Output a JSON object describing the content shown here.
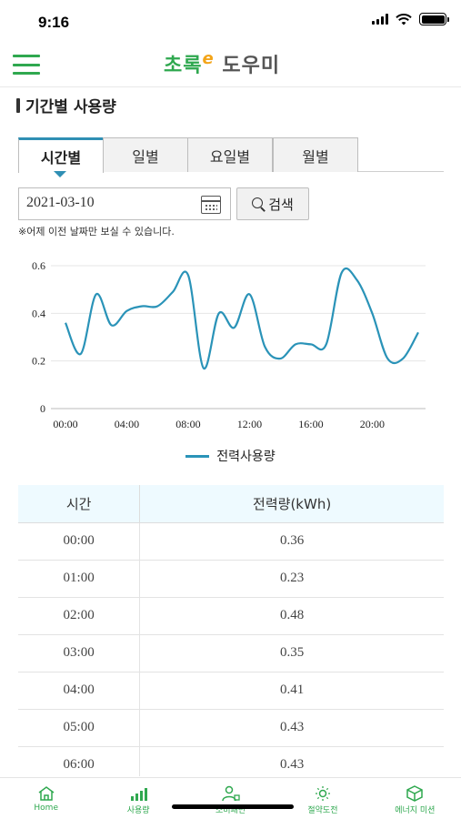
{
  "status_bar": {
    "time": "9:16"
  },
  "header": {
    "logo_main": "초록",
    "logo_e": "e",
    "logo_sub": "도우미"
  },
  "section_title": "기간별 사용량",
  "tabs": [
    {
      "label": "시간별",
      "active": true
    },
    {
      "label": "일별",
      "active": false
    },
    {
      "label": "요일별",
      "active": false
    },
    {
      "label": "월별",
      "active": false
    }
  ],
  "date_field": {
    "value": "2021-03-10"
  },
  "search_button": {
    "label": "검색"
  },
  "note": "※어제 이전 날짜만 보실 수 있습니다.",
  "chart_data": {
    "type": "line",
    "x": [
      "00:00",
      "01:00",
      "02:00",
      "03:00",
      "04:00",
      "05:00",
      "06:00",
      "07:00",
      "08:00",
      "09:00",
      "10:00",
      "11:00",
      "12:00",
      "13:00",
      "14:00",
      "15:00",
      "16:00",
      "17:00",
      "18:00",
      "19:00",
      "20:00",
      "21:00",
      "22:00",
      "23:00"
    ],
    "series": [
      {
        "name": "전력사용량",
        "values": [
          0.36,
          0.23,
          0.48,
          0.35,
          0.41,
          0.43,
          0.43,
          0.49,
          0.56,
          0.17,
          0.4,
          0.34,
          0.48,
          0.26,
          0.21,
          0.27,
          0.27,
          0.27,
          0.57,
          0.54,
          0.4,
          0.21,
          0.21,
          0.32
        ],
        "color": "#2a93b8"
      }
    ],
    "x_ticks": [
      "00:00",
      "04:00",
      "08:00",
      "12:00",
      "16:00",
      "20:00"
    ],
    "y_ticks": [
      "0",
      "0.2",
      "0.4",
      "0.6"
    ],
    "ylim": [
      0,
      0.6
    ],
    "grid": true,
    "legend": "bottom-center"
  },
  "table": {
    "headers": [
      "시간",
      "전력량(kWh)"
    ],
    "rows": [
      [
        "00:00",
        "0.36"
      ],
      [
        "01:00",
        "0.23"
      ],
      [
        "02:00",
        "0.48"
      ],
      [
        "03:00",
        "0.35"
      ],
      [
        "04:00",
        "0.41"
      ],
      [
        "05:00",
        "0.43"
      ],
      [
        "06:00",
        "0.43"
      ]
    ]
  },
  "bottom_nav": [
    {
      "label": "Home",
      "icon": "home-icon"
    },
    {
      "label": "사용량",
      "icon": "bar-chart-icon"
    },
    {
      "label": "소비패턴",
      "icon": "user-pattern-icon"
    },
    {
      "label": "절약도전",
      "icon": "sun-icon"
    },
    {
      "label": "에너지 미션",
      "icon": "cube-icon"
    }
  ],
  "colors": {
    "brand_green": "#2fa84f",
    "accent_blue": "#2a93b8",
    "logo_orange": "#f3a51a"
  }
}
